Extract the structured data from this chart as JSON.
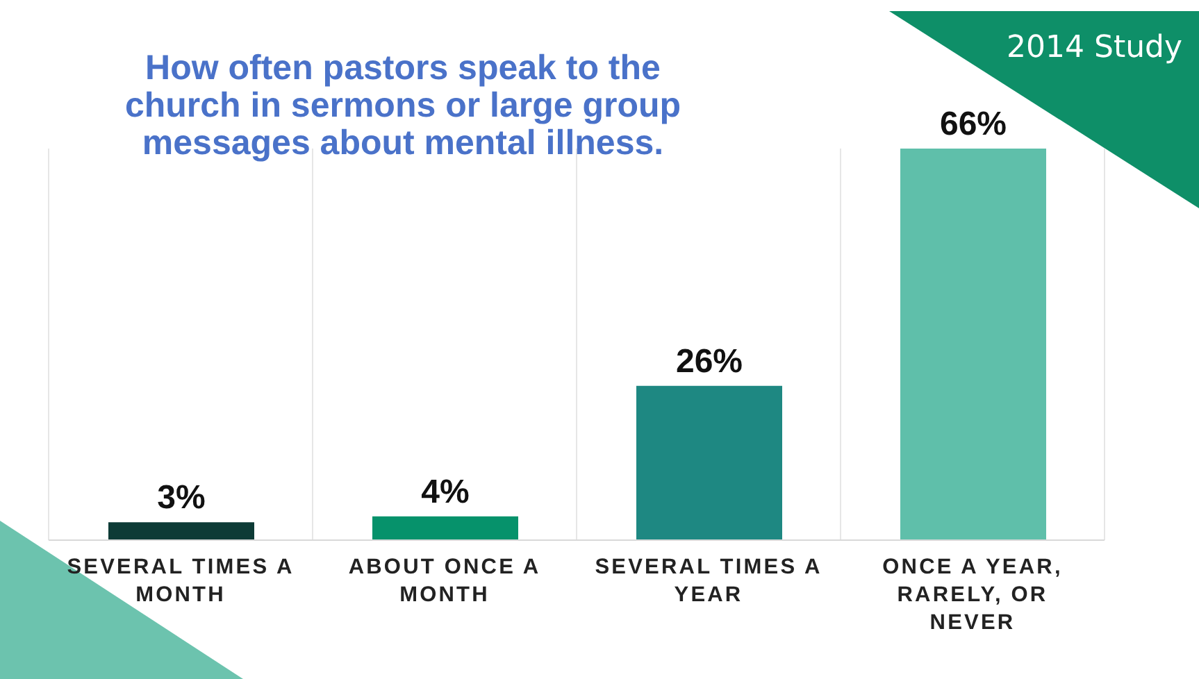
{
  "chart_data": {
    "type": "bar",
    "title": "How often pastors speak to the church in sermons or large group messages about mental illness.",
    "categories": [
      "SEVERAL TIMES A MONTH",
      "ABOUT ONCE A MONTH",
      "SEVERAL TIMES A YEAR",
      "ONCE A YEAR, RARELY, OR NEVER"
    ],
    "values": [
      3,
      4,
      26,
      66
    ],
    "value_labels": [
      "3%",
      "4%",
      "26%",
      "66%"
    ],
    "colors": [
      "#0d3b36",
      "#06926b",
      "#1e8882",
      "#5fbfaa"
    ],
    "grid": "x",
    "tick_labels": "x",
    "annotations": [
      "2014 Study"
    ]
  }
}
